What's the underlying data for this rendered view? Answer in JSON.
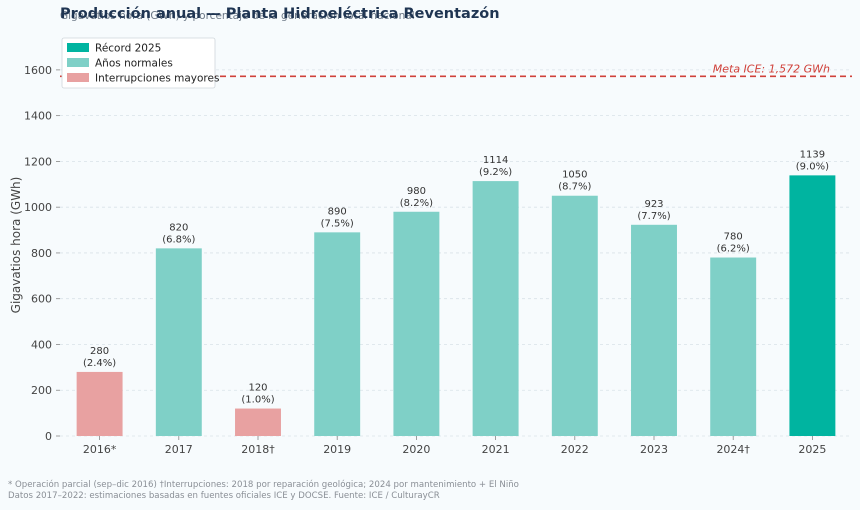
{
  "chart_data": {
    "type": "bar",
    "title": "Producción anual — Planta Hidroeléctrica Reventazón",
    "subtitle": "Gigavatios hora (GWh) y porcentaje de la generación total nacional",
    "ylabel": "Gigavatios hora (GWh)",
    "xlabel": "",
    "ylim": [
      0,
      1700
    ],
    "yticks": [
      0,
      200,
      400,
      600,
      800,
      1000,
      1200,
      1400,
      1600
    ],
    "grid": true,
    "legend_position": "top-left",
    "categories": [
      "2016*",
      "2017",
      "2018†",
      "2019",
      "2020",
      "2021",
      "2022",
      "2023",
      "2024†",
      "2025"
    ],
    "values": [
      280,
      820,
      120,
      890,
      980,
      1114,
      1050,
      923,
      780,
      1139
    ],
    "value_labels": [
      "280",
      "820",
      "120",
      "890",
      "980",
      "1114",
      "1050",
      "923",
      "780",
      "1139"
    ],
    "percent_labels": [
      "(2.4%)",
      "(6.8%)",
      "(1.0%)",
      "(7.5%)",
      "(8.2%)",
      "(9.2%)",
      "(8.7%)",
      "(7.7%)",
      "(6.2%)",
      "(9.0%)"
    ],
    "bar_groups": [
      "interruption",
      "normal",
      "interruption",
      "normal",
      "normal",
      "normal",
      "normal",
      "normal",
      "normal",
      "record"
    ],
    "legend": [
      {
        "key": "record",
        "label": "Récord 2025",
        "color": "#00b4a0"
      },
      {
        "key": "normal",
        "label": "Años normales",
        "color": "#7fd0c7"
      },
      {
        "key": "interruption",
        "label": "Interrupciones mayores",
        "color": "#e8a1a1"
      }
    ],
    "reference_line": {
      "value": 1572,
      "label": "Meta ICE: 1,572 GWh",
      "color": "#d0413a"
    }
  },
  "footnotes": [
    "* Operación parcial (sep–dic 2016)  †Interrupciones: 2018 por reparación geológica; 2024 por mantenimiento + El Niño",
    "Datos 2017–2022: estimaciones basadas en fuentes oficiales ICE y DOCSE. Fuente: ICE / CulturayCR"
  ]
}
